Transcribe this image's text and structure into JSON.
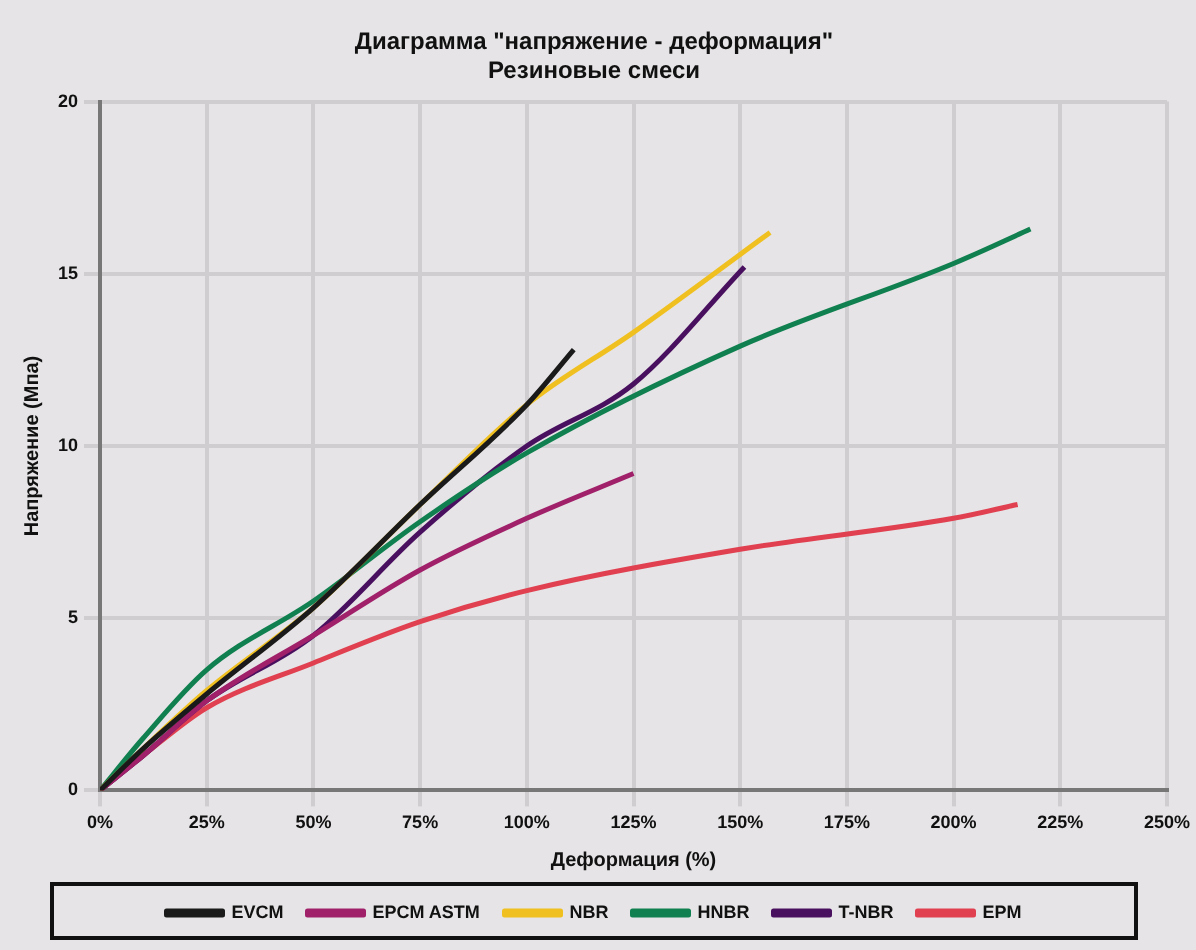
{
  "chart_data": {
    "type": "line",
    "title": "Диаграмма \"напряжение - деформация\"",
    "subtitle": "Резиновые смеси",
    "xlabel": "Деформация (%)",
    "ylabel": "Напряжение (Мпа)",
    "xlim": [
      0,
      250
    ],
    "xticks": [
      {
        "value": 0,
        "label": "0%"
      },
      {
        "value": 25,
        "label": "25%"
      },
      {
        "value": 50,
        "label": "50%"
      },
      {
        "value": 75,
        "label": "75%"
      },
      {
        "value": 100,
        "label": "100%"
      },
      {
        "value": 125,
        "label": "125%"
      },
      {
        "value": 150,
        "label": "150%"
      },
      {
        "value": 175,
        "label": "175%"
      },
      {
        "value": 200,
        "label": "200%"
      },
      {
        "value": 225,
        "label": "225%"
      },
      {
        "value": 250,
        "label": "250%"
      }
    ],
    "ylim": [
      0,
      20
    ],
    "yticks": [
      0,
      5,
      10,
      15,
      20
    ],
    "grid": true,
    "legend": "bottom",
    "marker": "none",
    "line_style": "solid",
    "series": [
      {
        "name": "EVCM",
        "color": "#1a1a1a",
        "x": [
          0,
          10,
          25,
          50,
          75,
          100,
          111
        ],
        "values": [
          0,
          1.2,
          2.8,
          5.3,
          8.3,
          11.2,
          12.8
        ]
      },
      {
        "name": "EPCM ASTM",
        "color": "#a0206a",
        "x": [
          0,
          10,
          25,
          50,
          75,
          100,
          125
        ],
        "values": [
          0,
          1.0,
          2.6,
          4.5,
          6.4,
          7.9,
          9.2
        ]
      },
      {
        "name": "NBR",
        "color": "#f0c020",
        "x": [
          0,
          10,
          25,
          50,
          75,
          100,
          125,
          157
        ],
        "values": [
          0,
          1.2,
          2.9,
          5.3,
          8.3,
          11.2,
          13.3,
          16.2
        ]
      },
      {
        "name": "HNBR",
        "color": "#108050",
        "x": [
          0,
          10,
          25,
          50,
          75,
          100,
          150,
          200,
          218
        ],
        "values": [
          0,
          1.5,
          3.5,
          5.5,
          7.8,
          9.8,
          12.9,
          15.3,
          16.3
        ]
      },
      {
        "name": "T-NBR",
        "color": "#4a1060",
        "x": [
          0,
          10,
          25,
          50,
          75,
          100,
          125,
          151
        ],
        "values": [
          0,
          1.0,
          2.6,
          4.5,
          7.5,
          10.0,
          11.8,
          15.2
        ]
      },
      {
        "name": "EPM",
        "color": "#e04050",
        "x": [
          0,
          10,
          25,
          50,
          75,
          100,
          150,
          200,
          215
        ],
        "values": [
          0,
          1.0,
          2.4,
          3.7,
          4.9,
          5.8,
          7.0,
          7.9,
          8.3
        ]
      }
    ]
  }
}
